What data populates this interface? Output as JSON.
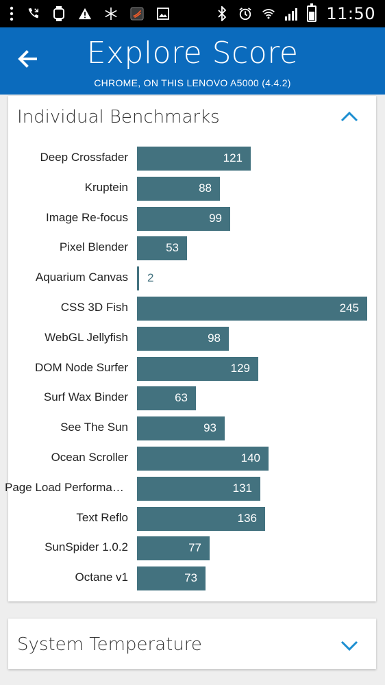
{
  "status_bar": {
    "time": "11:50",
    "icons": [
      "more-vert-icon",
      "missed-call-icon",
      "watch-icon",
      "warning-icon",
      "snowflake-icon",
      "app-icon",
      "image-icon",
      "bluetooth-icon",
      "alarm-icon",
      "wifi-icon",
      "signal-icon",
      "battery-icon"
    ]
  },
  "header": {
    "title": "Explore Score",
    "subtitle": "CHROME, ON THIS LENOVO A5000 (4.4.2)",
    "background": "#0b6bbd"
  },
  "benchmarks_card": {
    "title": "Individual Benchmarks",
    "expanded": true,
    "bar_color": "#43727f",
    "items": [
      {
        "label": "Deep Crossfader",
        "value": 121
      },
      {
        "label": "Kruptein",
        "value": 88
      },
      {
        "label": "Image Re-focus",
        "value": 99
      },
      {
        "label": "Pixel Blender",
        "value": 53
      },
      {
        "label": "Aquarium Canvas",
        "value": 2
      },
      {
        "label": "CSS 3D Fish",
        "value": 245
      },
      {
        "label": "WebGL Jellyfish",
        "value": 98
      },
      {
        "label": "DOM Node Surfer",
        "value": 129
      },
      {
        "label": "Surf Wax Binder",
        "value": 63
      },
      {
        "label": "See The Sun",
        "value": 93
      },
      {
        "label": "Ocean Scroller",
        "value": 140
      },
      {
        "label": "Page Load Performan...",
        "value": 131
      },
      {
        "label": "Text Reflo",
        "value": 136
      },
      {
        "label": "SunSpider 1.0.2",
        "value": 77
      },
      {
        "label": "Octane v1",
        "value": 73
      }
    ]
  },
  "temperature_card": {
    "title": "System Temperature",
    "expanded": false
  }
}
